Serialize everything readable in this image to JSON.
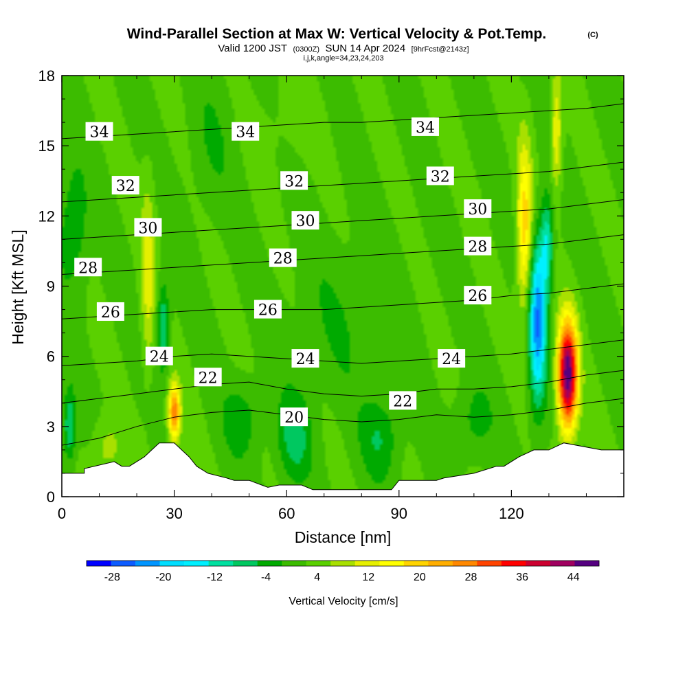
{
  "header": {
    "title": "Wind-Parallel Section at Max W: Vertical Velocity & Pot.Temp.",
    "title_mark": "(C)",
    "valid_prefix": "Valid 1200 JST",
    "valid_zulu": "(0300Z)",
    "valid_date": "SUN 14 Apr 2024",
    "forecast_tag": "[9hrFcst@2143z]",
    "indices": "i,j,k,angle=34,23,24,203"
  },
  "chart_data": {
    "type": "heatmap",
    "title": "Wind-Parallel Section at Max W: Vertical Velocity & Pot.Temp.",
    "xlabel": "Distance [nm]",
    "ylabel": "Height [Kft MSL]",
    "xlim": [
      0,
      150
    ],
    "ylim": [
      0,
      18
    ],
    "xticks": [
      0,
      30,
      60,
      90,
      120
    ],
    "yticks": [
      0,
      3,
      6,
      9,
      12,
      15,
      18
    ],
    "xtick_labels": [
      "0",
      "30",
      "60",
      "90",
      "120"
    ],
    "ytick_labels": [
      "0",
      "3",
      "6",
      "9",
      "12",
      "15",
      "18"
    ],
    "colorbar": {
      "label": "Vertical Velocity [cm/s]",
      "min": -32,
      "max": 48,
      "step": 4,
      "tick_values": [
        -28,
        -20,
        -12,
        -4,
        4,
        12,
        20,
        28,
        36,
        44
      ],
      "tick_labels": [
        "-28",
        "-20",
        "-12",
        "-4",
        "4",
        "12",
        "20",
        "28",
        "36",
        "44"
      ],
      "colors": [
        "#0000ff",
        "#0d5cff",
        "#0095ff",
        "#00deff",
        "#00f0ff",
        "#00e0a0",
        "#00c860",
        "#00aa00",
        "#3cbc00",
        "#5ad000",
        "#a8e000",
        "#e6f000",
        "#ffff00",
        "#ffd400",
        "#ffae00",
        "#ff8800",
        "#ff4400",
        "#ff0000",
        "#cc0030",
        "#a00060",
        "#550080"
      ]
    },
    "terrain_profile": {
      "x": [
        0,
        6,
        6,
        14,
        16,
        18,
        22,
        24,
        26,
        30,
        34,
        36,
        39,
        44,
        46,
        50,
        55,
        58,
        60,
        64,
        67,
        72,
        76,
        78,
        82,
        88,
        90,
        94,
        100,
        102,
        110,
        116,
        118,
        122,
        126,
        130,
        134,
        144,
        150
      ],
      "y": [
        1.0,
        1.0,
        1.2,
        1.5,
        1.3,
        1.3,
        1.7,
        2.0,
        2.3,
        2.3,
        1.7,
        1.3,
        1.0,
        0.8,
        0.7,
        0.7,
        0.4,
        0.5,
        0.5,
        0.5,
        0.3,
        0.3,
        0.3,
        0.3,
        0.3,
        0.3,
        0.7,
        0.7,
        0.7,
        0.8,
        1.0,
        1.3,
        1.3,
        1.7,
        2.0,
        2.0,
        2.3,
        2.0,
        2.0
      ]
    },
    "theta_contours": [
      {
        "level": 20,
        "y": [
          2.2,
          2.5,
          3.0,
          3.4,
          3.6,
          3.7,
          3.5,
          3.3,
          3.2,
          3.3,
          3.5,
          3.4,
          3.5,
          3.7,
          4.0,
          4.2
        ]
      },
      {
        "level": 22,
        "y": [
          4.0,
          4.2,
          4.4,
          4.6,
          4.8,
          4.9,
          4.6,
          4.4,
          4.3,
          4.4,
          4.6,
          4.6,
          4.7,
          4.9,
          5.2,
          5.4
        ]
      },
      {
        "level": 24,
        "y": [
          5.6,
          5.7,
          5.8,
          6.0,
          6.1,
          6.0,
          5.9,
          5.8,
          5.7,
          5.8,
          5.9,
          6.0,
          6.1,
          6.3,
          6.5,
          6.7
        ]
      },
      {
        "level": 26,
        "y": [
          7.6,
          7.7,
          7.8,
          7.9,
          8.0,
          8.0,
          8.0,
          8.0,
          8.1,
          8.2,
          8.3,
          8.4,
          8.6,
          8.7,
          8.9,
          9.1
        ]
      },
      {
        "level": 28,
        "y": [
          9.5,
          9.6,
          9.7,
          9.8,
          9.9,
          10.0,
          10.1,
          10.2,
          10.3,
          10.4,
          10.5,
          10.6,
          10.7,
          10.8,
          11.0,
          11.2
        ]
      },
      {
        "level": 30,
        "y": [
          11.0,
          11.1,
          11.2,
          11.3,
          11.4,
          11.5,
          11.6,
          11.7,
          11.8,
          11.9,
          12.0,
          12.1,
          12.2,
          12.3,
          12.5,
          12.7
        ]
      },
      {
        "level": 32,
        "y": [
          12.6,
          12.7,
          12.8,
          12.9,
          13.0,
          13.1,
          13.2,
          13.3,
          13.4,
          13.5,
          13.6,
          13.7,
          13.8,
          13.9,
          14.1,
          14.3
        ]
      },
      {
        "level": 34,
        "y": [
          15.3,
          15.4,
          15.5,
          15.6,
          15.7,
          15.8,
          15.9,
          16.0,
          16.0,
          16.1,
          16.2,
          16.3,
          16.4,
          16.5,
          16.6,
          16.8
        ]
      }
    ],
    "theta_contour_x": [
      0,
      10,
      20,
      30,
      40,
      50,
      60,
      70,
      80,
      90,
      100,
      110,
      120,
      130,
      140,
      150
    ],
    "contour_labels": [
      {
        "text": "34",
        "x": 10,
        "y": 15.6
      },
      {
        "text": "34",
        "x": 49,
        "y": 15.6
      },
      {
        "text": "34",
        "x": 97,
        "y": 15.8
      },
      {
        "text": "32",
        "x": 17,
        "y": 13.3
      },
      {
        "text": "32",
        "x": 62,
        "y": 13.5
      },
      {
        "text": "32",
        "x": 101,
        "y": 13.7
      },
      {
        "text": "30",
        "x": 23,
        "y": 11.5
      },
      {
        "text": "30",
        "x": 65,
        "y": 11.8
      },
      {
        "text": "30",
        "x": 111,
        "y": 12.3
      },
      {
        "text": "28",
        "x": 7,
        "y": 9.8
      },
      {
        "text": "28",
        "x": 59,
        "y": 10.2
      },
      {
        "text": "28",
        "x": 111,
        "y": 10.7
      },
      {
        "text": "26",
        "x": 13,
        "y": 7.9
      },
      {
        "text": "26",
        "x": 55,
        "y": 8.0
      },
      {
        "text": "26",
        "x": 111,
        "y": 8.6
      },
      {
        "text": "24",
        "x": 26,
        "y": 6.0
      },
      {
        "text": "24",
        "x": 65,
        "y": 5.9
      },
      {
        "text": "24",
        "x": 104,
        "y": 5.9
      },
      {
        "text": "22",
        "x": 39,
        "y": 5.1
      },
      {
        "text": "22",
        "x": 91,
        "y": 4.1
      },
      {
        "text": "20",
        "x": 62,
        "y": 3.4
      }
    ],
    "w_features": [
      {
        "name": "background",
        "value": 2
      },
      {
        "name": "updraft core",
        "x": 135,
        "y": 5.2,
        "value": 48
      },
      {
        "name": "updraft",
        "x": 30,
        "y": 3.6,
        "value": 26
      },
      {
        "name": "downdraft",
        "x": 127,
        "y": 8.5,
        "value": -26
      },
      {
        "name": "upper updraft",
        "x": 124,
        "y": 11,
        "value": 18
      },
      {
        "name": "upper downdraft",
        "x": 130,
        "y": 11.5,
        "value": -14
      },
      {
        "name": "tilted updraft",
        "x": 23,
        "y": 9.5,
        "value": 10
      },
      {
        "name": "low-level downdrafts",
        "x": 62,
        "y": 2.5,
        "value": -9
      },
      {
        "name": "left downdraft",
        "x": 4,
        "y": 11.5,
        "value": -7
      }
    ]
  }
}
